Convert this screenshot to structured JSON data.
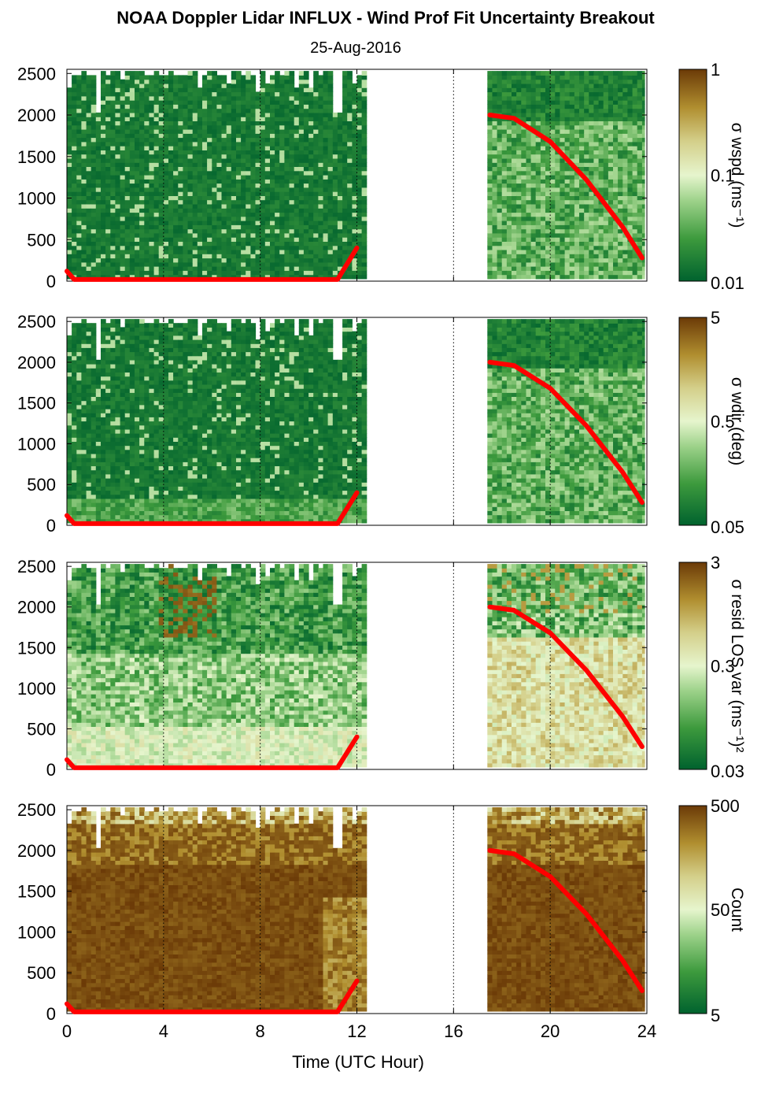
{
  "title": "NOAA Doppler Lidar INFLUX - Wind Prof Fit Uncertainty Breakout",
  "subtitle": "25-Aug-2016",
  "xlabel": "Time (UTC Hour)",
  "x_ticks": [
    0,
    4,
    8,
    12,
    16,
    20,
    24
  ],
  "y_ticks": [
    0,
    500,
    1000,
    1500,
    2000,
    2500
  ],
  "colors": {
    "colormap": [
      "#00622e",
      "#3d9a3d",
      "#9dd28a",
      "#e6f5cd",
      "#d4cf8a",
      "#b08e2f",
      "#6b3a07"
    ],
    "mixing_height_line": "#ff0000",
    "missing": "#ffffff"
  },
  "chart_data": [
    {
      "type": "heatmap",
      "colorbar_label": "σ wspd (ms⁻¹)",
      "colorbar_ticks": [
        "1",
        "0.1",
        "0.01"
      ],
      "xlim": [
        0,
        24
      ],
      "ylim": [
        0,
        2550
      ],
      "data_segments": [
        [
          0,
          12.4
        ],
        [
          17.4,
          23.9
        ]
      ],
      "overlay_line": {
        "name": "",
        "x": [
          0,
          0.3,
          11.2,
          12.0,
          17.5,
          18.5,
          20,
          21.5,
          23,
          23.8
        ],
        "y": [
          120,
          20,
          20,
          400,
          2000,
          1960,
          1680,
          1220,
          650,
          280
        ]
      }
    },
    {
      "type": "heatmap",
      "colorbar_label": "σ wdir (deg)",
      "colorbar_ticks": [
        "5",
        "0.5",
        "0.05"
      ],
      "xlim": [
        0,
        24
      ],
      "ylim": [
        0,
        2550
      ],
      "data_segments": [
        [
          0,
          12.4
        ],
        [
          17.4,
          23.9
        ]
      ],
      "overlay_line": {
        "name": "",
        "x": [
          0,
          0.3,
          11.2,
          12.0,
          17.5,
          18.5,
          20,
          21.5,
          23,
          23.8
        ],
        "y": [
          120,
          20,
          20,
          400,
          2000,
          1960,
          1680,
          1220,
          650,
          280
        ]
      }
    },
    {
      "type": "heatmap",
      "colorbar_label": "σ resid LOS var (ms⁻¹)²",
      "colorbar_ticks": [
        "3",
        "0.3",
        "0.03"
      ],
      "xlim": [
        0,
        24
      ],
      "ylim": [
        0,
        2550
      ],
      "data_segments": [
        [
          0,
          12.4
        ],
        [
          17.4,
          23.9
        ]
      ],
      "overlay_line": {
        "name": "",
        "x": [
          0,
          0.3,
          11.2,
          12.0,
          17.5,
          18.5,
          20,
          21.5,
          23,
          23.8
        ],
        "y": [
          120,
          20,
          20,
          400,
          2000,
          1960,
          1680,
          1220,
          650,
          280
        ]
      }
    },
    {
      "type": "heatmap",
      "colorbar_label": "Count",
      "colorbar_ticks": [
        "500",
        "50",
        "5"
      ],
      "xlim": [
        0,
        24
      ],
      "ylim": [
        0,
        2550
      ],
      "data_segments": [
        [
          0,
          12.4
        ],
        [
          17.4,
          23.9
        ]
      ],
      "overlay_line": {
        "name": "",
        "x": [
          0,
          0.3,
          11.2,
          12.0,
          17.5,
          18.5,
          20,
          21.5,
          23,
          23.8
        ],
        "y": [
          120,
          20,
          20,
          400,
          2000,
          1960,
          1680,
          1220,
          650,
          280
        ]
      }
    }
  ]
}
